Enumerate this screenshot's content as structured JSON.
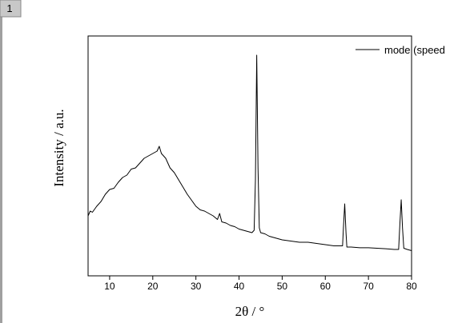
{
  "tab_label": "1",
  "chart_data": {
    "type": "line",
    "x_label": "2θ / °",
    "y_label": "Intensity / a.u.",
    "xlim": [
      5,
      80
    ],
    "ylim": [
      0,
      100
    ],
    "xticks": [
      10,
      20,
      30,
      40,
      50,
      60,
      70,
      80
    ],
    "grid": false,
    "legend": "upper right",
    "series": [
      {
        "name": "mode (speed",
        "color": "#000000",
        "x": [
          5,
          5.5,
          6,
          7,
          8,
          9,
          10,
          11,
          12,
          13,
          14,
          15,
          16,
          17,
          18,
          19,
          20,
          21,
          21.5,
          22,
          23,
          24,
          25,
          26,
          27,
          28,
          29,
          30,
          31,
          32,
          33,
          34,
          35,
          35.5,
          36,
          37,
          38,
          39,
          40,
          41,
          42,
          43,
          43.5,
          43.8,
          44.1,
          44.4,
          44.7,
          45,
          46,
          47,
          48,
          49,
          50,
          52,
          54,
          56,
          58,
          60,
          62,
          63,
          64,
          64.2,
          64.5,
          64.8,
          65,
          66,
          68,
          70,
          72,
          74,
          76,
          77,
          77.3,
          77.6,
          77.9,
          78.2,
          79,
          80
        ],
        "values": [
          25,
          27,
          26.5,
          29,
          31,
          34,
          36,
          36.5,
          39,
          41,
          42,
          44.5,
          45,
          47,
          49,
          50,
          51,
          52,
          54,
          51,
          49,
          45,
          43,
          40,
          37,
          34,
          31.5,
          29,
          27.5,
          27,
          26,
          25,
          23.5,
          26,
          22.5,
          22,
          21,
          20.5,
          19.5,
          19,
          18.5,
          18,
          19,
          40,
          92,
          45,
          20,
          18,
          17.5,
          16.5,
          16,
          15.5,
          15,
          14.5,
          14,
          14,
          13.5,
          13,
          12.5,
          12.5,
          12.5,
          20,
          30,
          18,
          12,
          12,
          11.7,
          11.7,
          11.5,
          11.3,
          11,
          11,
          22,
          31.7,
          20,
          11.5,
          11,
          10.5
        ]
      }
    ]
  }
}
